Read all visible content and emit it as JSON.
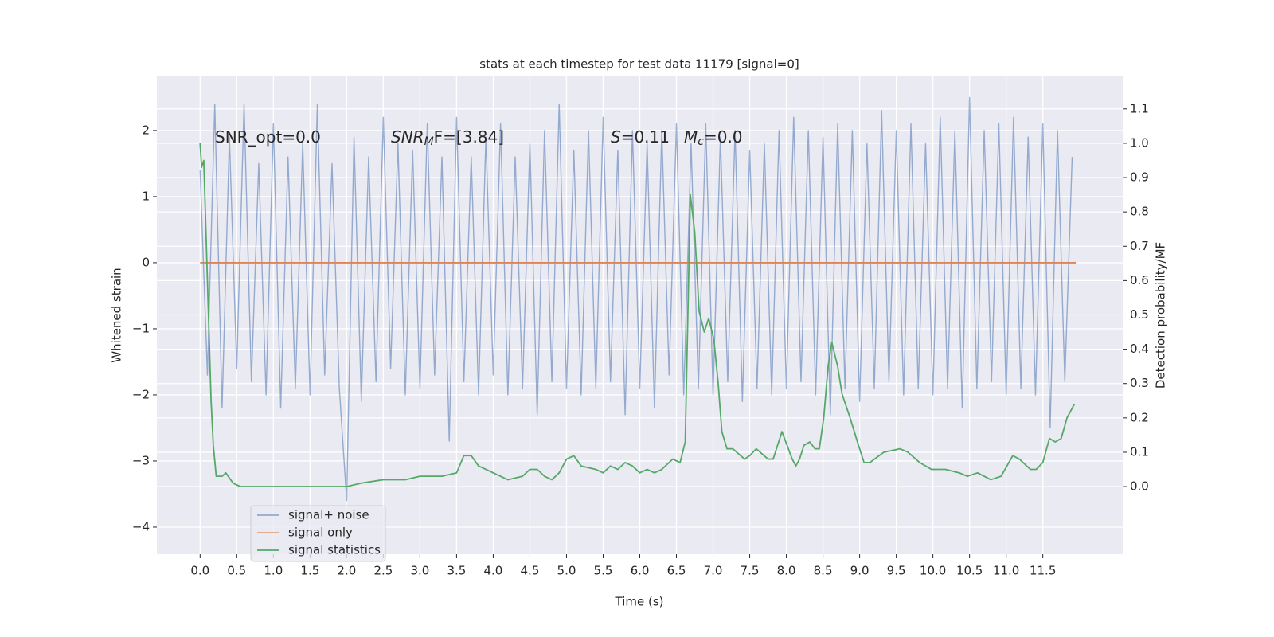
{
  "chart_data": {
    "type": "line",
    "title": "stats at each timestep for test data 11179 [signal=0]",
    "xlabel": "Time (s)",
    "ylabel": "Whitened strain",
    "y2label": "Detection probability/MF",
    "annotations": [
      [
        {
          "text": "SNR_opt=0.0"
        }
      ],
      [
        {
          "text": "SNR",
          "italic": true
        },
        {
          "text": "M",
          "italic": true,
          "sub": true
        },
        {
          "text": "F=[3.84]"
        }
      ],
      [
        {
          "text": "S",
          "italic": true
        },
        {
          "text": "=0.11"
        }
      ],
      [
        {
          "text": "M",
          "italic": true
        },
        {
          "text": "c",
          "italic": true,
          "sub": true
        },
        {
          "text": "=0.0"
        }
      ]
    ],
    "xlim": [
      -0.59,
      12.59
    ],
    "ylim": [
      -4.41,
      2.83
    ],
    "y2lim": [
      -0.197,
      1.197
    ],
    "xticks": [
      {
        "value": 0,
        "label": "0.0"
      },
      0.5,
      {
        "value": 1,
        "label": "1.0"
      },
      1.5,
      {
        "value": 2,
        "label": "2.0"
      },
      2.5,
      {
        "value": 3,
        "label": "3.0"
      },
      3.5,
      {
        "value": 4,
        "label": "4.0"
      },
      4.5,
      {
        "value": 5,
        "label": "5.0"
      },
      5.5,
      {
        "value": 6,
        "label": "6.0"
      },
      6.5,
      {
        "value": 7,
        "label": "7.0"
      },
      7.5,
      {
        "value": 8,
        "label": "8.0"
      },
      8.5,
      {
        "value": 9,
        "label": "9.0"
      },
      9.5,
      {
        "value": 10,
        "label": "10.0"
      },
      10.5,
      {
        "value": 11,
        "label": "11.0"
      },
      11.5
    ],
    "yticks": [
      {
        "value": -4,
        "label": "−4"
      },
      {
        "value": -3,
        "label": "−3"
      },
      {
        "value": -2,
        "label": "−2"
      },
      {
        "value": -1,
        "label": "−1"
      },
      0,
      1,
      2
    ],
    "y2ticks": [
      {
        "value": 0,
        "label": "0.0"
      },
      0.1,
      0.2,
      0.3,
      0.4,
      0.5,
      0.6,
      0.7,
      0.8,
      0.9,
      {
        "value": 1,
        "label": "1.0"
      },
      1.1
    ],
    "grid": true,
    "legend": "lower left",
    "series": [
      {
        "name": "signal+ noise",
        "color": "#4c72b0",
        "x": [
          0,
          0.1,
          0.2,
          0.3,
          0.4,
          0.5,
          0.6,
          0.7,
          0.8,
          0.9,
          1,
          1.1,
          1.2,
          1.3,
          1.4,
          1.5,
          1.6,
          1.7,
          1.8,
          1.9,
          2,
          2.1,
          2.2,
          2.3,
          2.4,
          2.5,
          2.6,
          2.7,
          2.8,
          2.9,
          3,
          3.1,
          3.2,
          3.3,
          3.4,
          3.5,
          3.6,
          3.7,
          3.8,
          3.9,
          4,
          4.1,
          4.2,
          4.3,
          4.4,
          4.5,
          4.6,
          4.7,
          4.8,
          4.9,
          5,
          5.1,
          5.2,
          5.3,
          5.4,
          5.5,
          5.6,
          5.7,
          5.8,
          5.9,
          6,
          6.1,
          6.2,
          6.3,
          6.4,
          6.5,
          6.6,
          6.7,
          6.8,
          6.9,
          7,
          7.1,
          7.2,
          7.3,
          7.4,
          7.5,
          7.6,
          7.7,
          7.8,
          7.9,
          8,
          8.1,
          8.2,
          8.3,
          8.4,
          8.5,
          8.6,
          8.7,
          8.8,
          8.9,
          9,
          9.1,
          9.2,
          9.3,
          9.4,
          9.5,
          9.6,
          9.7,
          9.8,
          9.9,
          10,
          10.1,
          10.2,
          10.3,
          10.4,
          10.5,
          10.6,
          10.7,
          10.8,
          10.9,
          11,
          11.1,
          11.2,
          11.3,
          11.4,
          11.5,
          11.6,
          11.7,
          11.8,
          11.9
        ],
        "values": [
          1.4,
          -1.7,
          2.4,
          -2.2,
          1.9,
          -1.6,
          2.4,
          -1.8,
          1.5,
          -2.0,
          2.1,
          -2.2,
          1.6,
          -1.9,
          1.8,
          -2.0,
          2.4,
          -1.7,
          1.5,
          -1.9,
          -3.6,
          1.9,
          -2.1,
          1.6,
          -1.8,
          2.2,
          -1.6,
          1.8,
          -2.0,
          1.7,
          -1.9,
          2.1,
          -1.7,
          1.6,
          -2.7,
          2.2,
          -1.8,
          1.6,
          -2.0,
          1.9,
          -1.7,
          2.1,
          -2.0,
          1.6,
          -1.9,
          1.8,
          -2.3,
          2.0,
          -1.8,
          2.4,
          -1.9,
          1.7,
          -2.0,
          2.0,
          -1.9,
          2.2,
          -1.8,
          1.7,
          -2.3,
          2.0,
          -1.9,
          1.8,
          -2.2,
          2.0,
          -1.7,
          2.1,
          -2.0,
          1.8,
          -1.9,
          2.1,
          -2.0,
          1.9,
          -1.8,
          2.0,
          -2.1,
          1.7,
          -1.9,
          1.8,
          -2.0,
          2.0,
          -1.9,
          2.2,
          -1.8,
          2.0,
          -2.0,
          1.9,
          -2.3,
          2.1,
          -1.9,
          2.0,
          -2.1,
          1.8,
          -1.9,
          2.3,
          -1.8,
          2.0,
          -2.0,
          2.1,
          -1.9,
          1.8,
          -2.0,
          2.2,
          -1.9,
          2.0,
          -2.2,
          2.5,
          -1.9,
          2.0,
          -1.8,
          2.1,
          -2.0,
          2.2,
          -1.9,
          1.9,
          -2.0,
          2.1,
          -2.5,
          2.0,
          -1.8,
          1.6
        ]
      },
      {
        "name": "signal only",
        "color": "#dd8452",
        "x": [
          0,
          11.95
        ],
        "values": [
          0,
          0
        ]
      },
      {
        "name": "signal statistics",
        "color": "#55a868",
        "axis": "y2",
        "x": [
          0,
          0.02,
          0.05,
          0.1,
          0.15,
          0.18,
          0.22,
          0.3,
          0.35,
          0.45,
          0.55,
          0.7,
          1.0,
          1.5,
          2.0,
          2.2,
          2.5,
          2.8,
          3.0,
          3.3,
          3.5,
          3.6,
          3.7,
          3.8,
          4.0,
          4.2,
          4.4,
          4.5,
          4.6,
          4.7,
          4.8,
          4.9,
          5.0,
          5.1,
          5.2,
          5.4,
          5.5,
          5.6,
          5.7,
          5.8,
          5.9,
          6.0,
          6.1,
          6.2,
          6.3,
          6.45,
          6.55,
          6.62,
          6.69,
          6.75,
          6.81,
          6.88,
          6.94,
          7.01,
          7.07,
          7.12,
          7.19,
          7.27,
          7.43,
          7.5,
          7.59,
          7.75,
          7.82,
          7.94,
          8.08,
          8.13,
          8.18,
          8.24,
          8.32,
          8.39,
          8.45,
          8.51,
          8.57,
          8.62,
          8.7,
          8.76,
          8.87,
          8.97,
          9.06,
          9.14,
          9.33,
          9.55,
          9.66,
          9.82,
          9.98,
          10.17,
          10.36,
          10.47,
          10.61,
          10.79,
          10.93,
          11.09,
          11.18,
          11.33,
          11.41,
          11.5,
          11.59,
          11.67,
          11.75,
          11.83,
          11.93
        ],
        "values": [
          1.0,
          0.93,
          0.95,
          0.6,
          0.25,
          0.12,
          0.03,
          0.03,
          0.04,
          0.01,
          0.0,
          0.0,
          0.0,
          0.0,
          0.0,
          0.01,
          0.02,
          0.02,
          0.03,
          0.03,
          0.04,
          0.09,
          0.09,
          0.06,
          0.04,
          0.02,
          0.03,
          0.05,
          0.05,
          0.03,
          0.02,
          0.04,
          0.08,
          0.09,
          0.06,
          0.05,
          0.04,
          0.06,
          0.05,
          0.07,
          0.06,
          0.04,
          0.05,
          0.04,
          0.05,
          0.08,
          0.07,
          0.13,
          0.85,
          0.74,
          0.51,
          0.45,
          0.49,
          0.43,
          0.3,
          0.16,
          0.11,
          0.11,
          0.08,
          0.09,
          0.11,
          0.08,
          0.08,
          0.16,
          0.08,
          0.06,
          0.08,
          0.12,
          0.13,
          0.11,
          0.11,
          0.2,
          0.35,
          0.42,
          0.35,
          0.27,
          0.2,
          0.13,
          0.07,
          0.07,
          0.1,
          0.11,
          0.1,
          0.07,
          0.05,
          0.05,
          0.04,
          0.03,
          0.04,
          0.02,
          0.03,
          0.09,
          0.08,
          0.05,
          0.05,
          0.07,
          0.14,
          0.13,
          0.14,
          0.2,
          0.24
        ]
      }
    ]
  }
}
